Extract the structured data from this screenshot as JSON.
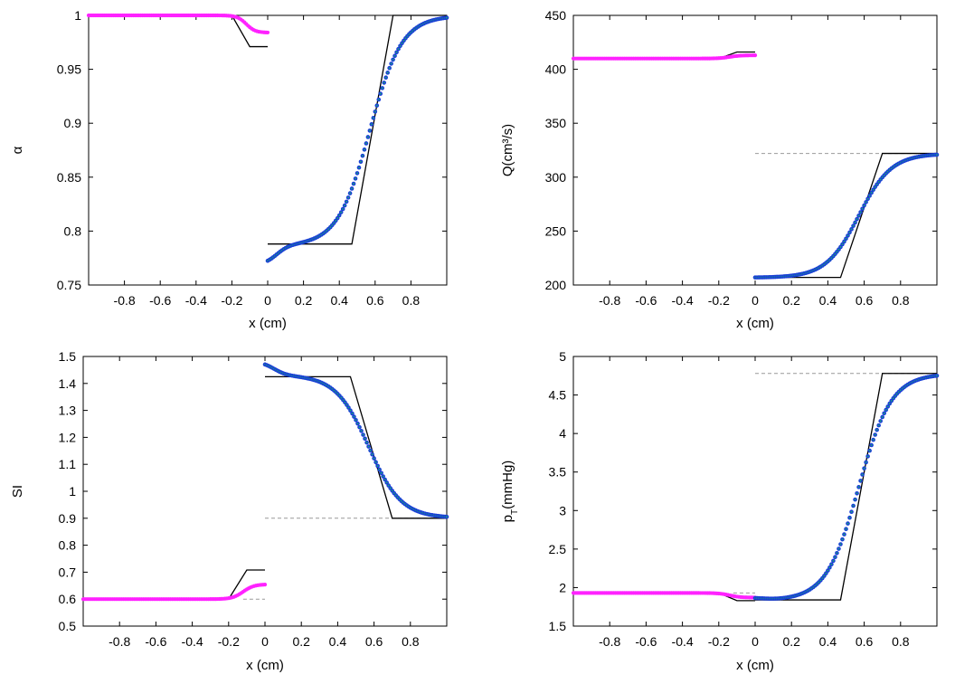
{
  "colors": {
    "left_series": "#ff22ff",
    "right_series": "#1a3fd6",
    "right_series_inner": "#18b070",
    "exact": "#000000",
    "dashed": "#999999"
  },
  "chart_data": [
    {
      "id": "alpha",
      "type": "line",
      "ylabel": "α",
      "xlabel": "x (cm)",
      "ylim": [
        0.75,
        1.0
      ],
      "yticks": [
        0.75,
        0.8,
        0.85,
        0.9,
        0.95,
        1
      ],
      "ytick_labels": [
        "0.75",
        "0.8",
        "0.85",
        "0.9",
        "0.95",
        "1"
      ],
      "left": {
        "xlim": [
          -1,
          0
        ],
        "xticks": [
          -0.8,
          -0.6,
          -0.4,
          -0.2,
          0
        ],
        "xtick_labels": [
          "-0.8",
          "-0.6",
          "-0.4",
          "-0.2",
          "0"
        ],
        "exact": {
          "x": [
            -1,
            -0.2,
            -0.1,
            0
          ],
          "y": [
            1,
            1,
            0.971,
            0.971
          ]
        },
        "numeric": {
          "from": 1,
          "to": 0.984,
          "center": -0.12,
          "width": 0.025,
          "x0": -1,
          "x1": 0
        }
      },
      "right": {
        "xlim": [
          0,
          1
        ],
        "xticks": [
          0,
          0.2,
          0.4,
          0.6,
          0.8
        ],
        "xtick_labels": [
          "0",
          "0.2",
          "0.4",
          "0.6",
          "0.8"
        ],
        "exact": {
          "x": [
            0,
            0.47,
            0.7,
            1
          ],
          "y": [
            0.788,
            0.788,
            1,
            1
          ]
        },
        "numeric": {
          "start": 0.769,
          "bump_x": 0.05,
          "mid": 0.787,
          "plateau_end": 0.35,
          "end": 1.0,
          "ramp_center": 0.57,
          "ramp_width": 0.09
        }
      },
      "dashed_level": null
    },
    {
      "id": "Q",
      "type": "line",
      "ylabel": "Q(cm³/s)",
      "xlabel": "x (cm)",
      "ylim": [
        200,
        450
      ],
      "yticks": [
        200,
        250,
        300,
        350,
        400,
        450
      ],
      "ytick_labels": [
        "200",
        "250",
        "300",
        "350",
        "400",
        "450"
      ],
      "left": {
        "xlim": [
          -1,
          0
        ],
        "xticks": [
          -0.8,
          -0.6,
          -0.4,
          -0.2,
          0
        ],
        "xtick_labels": [
          "-0.8",
          "-0.6",
          "-0.4",
          "-0.2",
          "0"
        ],
        "exact": {
          "x": [
            -1,
            -0.2,
            -0.1,
            0
          ],
          "y": [
            410,
            410,
            416,
            416
          ]
        },
        "numeric": {
          "from": 410,
          "to": 413,
          "center": -0.14,
          "width": 0.03,
          "x0": -1,
          "x1": 0
        }
      },
      "right": {
        "xlim": [
          0,
          1
        ],
        "xticks": [
          0,
          0.2,
          0.4,
          0.6,
          0.8
        ],
        "xtick_labels": [
          "0",
          "0.2",
          "0.4",
          "0.6",
          "0.8"
        ],
        "exact": {
          "x": [
            0,
            0.47,
            0.7,
            1
          ],
          "y": [
            207,
            207,
            322,
            322
          ]
        },
        "numeric": {
          "start": 207,
          "bump_x": 0.05,
          "mid": 207,
          "plateau_end": 0.35,
          "end": 322,
          "ramp_center": 0.57,
          "ramp_width": 0.09
        }
      },
      "dashed_level": 322
    },
    {
      "id": "SI",
      "type": "line",
      "ylabel": "SI",
      "xlabel": "x (cm)",
      "ylim": [
        0.5,
        1.5
      ],
      "yticks": [
        0.5,
        0.6,
        0.7,
        0.8,
        0.9,
        1,
        1.1,
        1.2,
        1.3,
        1.4,
        1.5
      ],
      "ytick_labels": [
        "0.5",
        "0.6",
        "0.7",
        "0.8",
        "0.9",
        "1",
        "1.1",
        "1.2",
        "1.3",
        "1.4",
        "1.5"
      ],
      "left": {
        "xlim": [
          -1,
          0
        ],
        "xticks": [
          -0.8,
          -0.6,
          -0.4,
          -0.2,
          0
        ],
        "xtick_labels": [
          "-0.8",
          "-0.6",
          "-0.4",
          "-0.2",
          "0"
        ],
        "exact": {
          "x": [
            -1,
            -0.2,
            -0.1,
            0
          ],
          "y": [
            0.6,
            0.6,
            0.708,
            0.708
          ]
        },
        "numeric": {
          "from": 0.6,
          "to": 0.655,
          "center": -0.12,
          "width": 0.03,
          "x0": -1,
          "x1": 0
        }
      },
      "right": {
        "xlim": [
          0,
          1
        ],
        "xticks": [
          0,
          0.2,
          0.4,
          0.6,
          0.8
        ],
        "xtick_labels": [
          "0",
          "0.2",
          "0.4",
          "0.6",
          "0.8"
        ],
        "exact": {
          "x": [
            0,
            0.47,
            0.7,
            1
          ],
          "y": [
            1.425,
            1.425,
            0.9,
            0.9
          ]
        },
        "numeric": {
          "start": 1.48,
          "bump_x": 0.05,
          "mid": 1.43,
          "plateau_end": 0.35,
          "end": 0.9,
          "ramp_center": 0.57,
          "ramp_width": 0.09
        }
      },
      "dashed_level": 0.9,
      "left_dashed_level": 0.6
    },
    {
      "id": "pT",
      "type": "line",
      "ylabel_main": "p",
      "ylabel_sub": "T",
      "ylabel_rest": "(mmHg)",
      "xlabel": "x (cm)",
      "ylim": [
        1.5,
        5
      ],
      "yticks": [
        1.5,
        2,
        2.5,
        3,
        3.5,
        4,
        4.5,
        5
      ],
      "ytick_labels": [
        "1.5",
        "2",
        "2.5",
        "3",
        "3.5",
        "4",
        "4.5",
        "5"
      ],
      "left": {
        "xlim": [
          -1,
          0
        ],
        "xticks": [
          -0.8,
          -0.6,
          -0.4,
          -0.2,
          0
        ],
        "xtick_labels": [
          "-0.8",
          "-0.6",
          "-0.4",
          "-0.2",
          "0"
        ],
        "exact": {
          "x": [
            -1,
            -0.2,
            -0.1,
            0
          ],
          "y": [
            1.93,
            1.93,
            1.83,
            1.83
          ]
        },
        "numeric": {
          "from": 1.93,
          "to": 1.87,
          "center": -0.14,
          "width": 0.03,
          "x0": -1,
          "x1": 0
        }
      },
      "right": {
        "xlim": [
          0,
          1
        ],
        "xticks": [
          0,
          0.2,
          0.4,
          0.6,
          0.8
        ],
        "xtick_labels": [
          "0",
          "0.2",
          "0.4",
          "0.6",
          "0.8"
        ],
        "exact": {
          "x": [
            0,
            0.47,
            0.7,
            1
          ],
          "y": [
            1.84,
            1.84,
            4.78,
            4.78
          ]
        },
        "numeric": {
          "start": 1.87,
          "bump_x": 0.05,
          "mid": 1.84,
          "plateau_end": 0.35,
          "end": 4.78,
          "ramp_center": 0.57,
          "ramp_width": 0.09
        }
      },
      "dashed_level": 4.78,
      "left_dashed_level": 1.93
    }
  ]
}
